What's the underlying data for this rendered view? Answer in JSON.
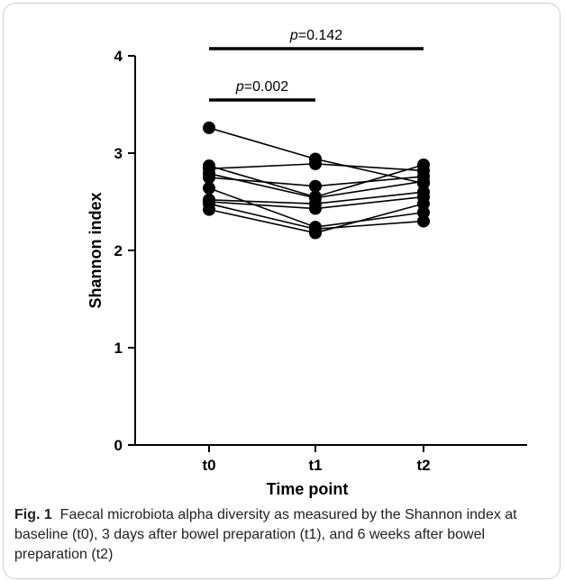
{
  "chart_data": {
    "type": "line",
    "xlabel": "Time point",
    "ylabel": "Shannon index",
    "categories": [
      "t0",
      "t1",
      "t2"
    ],
    "ylim": [
      0,
      4
    ],
    "yticks": [
      "0",
      "1",
      "2",
      "3",
      "4"
    ],
    "grid": false,
    "series": [
      {
        "values": [
          3.26,
          2.94,
          2.69
        ]
      },
      {
        "values": [
          2.87,
          2.55,
          2.88
        ]
      },
      {
        "values": [
          2.84,
          2.89,
          2.82
        ]
      },
      {
        "values": [
          2.79,
          2.54,
          2.71
        ]
      },
      {
        "values": [
          2.75,
          2.66,
          2.76
        ]
      },
      {
        "values": [
          2.64,
          2.24,
          2.39
        ]
      },
      {
        "values": [
          2.52,
          2.48,
          2.6
        ]
      },
      {
        "values": [
          2.5,
          2.43,
          2.55
        ]
      },
      {
        "values": [
          2.48,
          2.22,
          2.3
        ]
      },
      {
        "values": [
          2.42,
          2.18,
          2.48
        ]
      }
    ],
    "annotations": [
      {
        "from": "t0",
        "to": "t2",
        "label_p": "p",
        "label_value": "=0.142"
      },
      {
        "from": "t0",
        "to": "t1",
        "label_p": "p",
        "label_value": "=0.002"
      }
    ]
  },
  "caption": {
    "label": "Fig. 1",
    "text": "Faecal microbiota alpha diversity as measured by the Shannon index at baseline (t0), 3 days after bowel preparation (t1), and 6 weeks after bowel preparation (t2)"
  },
  "colors": {
    "marks": "#000000",
    "caption_text": "#222222",
    "frame_border": "#cfcfcf"
  }
}
